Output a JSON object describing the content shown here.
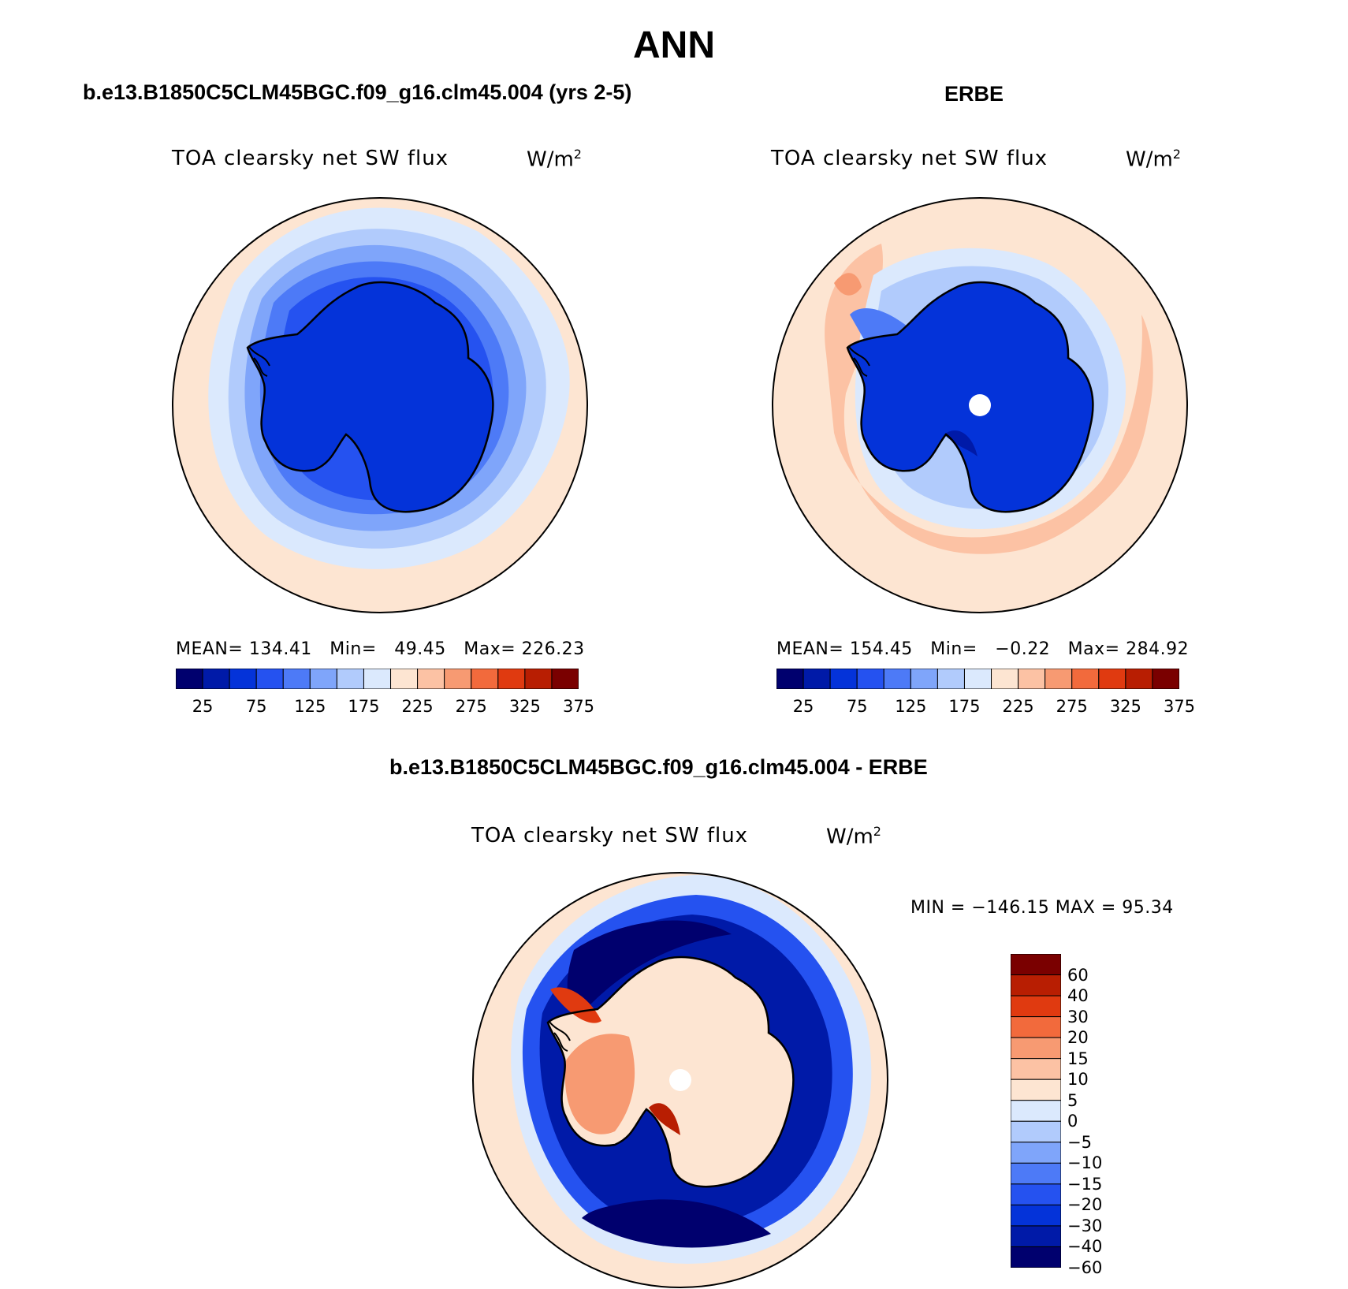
{
  "figure": {
    "title": "ANN"
  },
  "panels": [
    {
      "title": "b.e13.B1850C5CLM45BGC.f09_g16.clm45.004 (yrs 2-5)",
      "variable": "TOA clearsky net SW flux",
      "units_base": "W/m",
      "units_exp": "2",
      "stats": {
        "mean_label": "MEAN=",
        "mean": "134.41",
        "min_label": "Min=",
        "min": "49.45",
        "max_label": "Max=",
        "max": "226.23"
      }
    },
    {
      "title": "ERBE",
      "variable": "TOA clearsky net SW flux",
      "units_base": "W/m",
      "units_exp": "2",
      "stats": {
        "mean_label": "MEAN=",
        "mean": "154.45",
        "min_label": "Min=",
        "min": "−0.22",
        "max_label": "Max=",
        "max": "284.92"
      }
    },
    {
      "title": "b.e13.B1850C5CLM45BGC.f09_g16.clm45.004 - ERBE",
      "variable": "TOA clearsky net SW flux",
      "units_base": "W/m",
      "units_exp": "2",
      "minmax": "MIN = −146.15 MAX =  95.34"
    }
  ],
  "colorbar_abs": {
    "colors": [
      "#00006e",
      "#001aa8",
      "#0433d9",
      "#2552f0",
      "#4d7af7",
      "#7fa5fa",
      "#b1cbfc",
      "#dbe9fd",
      "#fde5d2",
      "#fcc2a4",
      "#f79a72",
      "#f26a3c",
      "#e03a10",
      "#b81e02",
      "#7a0000"
    ],
    "labels": [
      "25",
      "75",
      "125",
      "175",
      "225",
      "275",
      "325",
      "375"
    ]
  },
  "colorbar_diff": {
    "colors_top_to_bottom": [
      "#7a0000",
      "#b81e02",
      "#e03a10",
      "#f26a3c",
      "#f79a72",
      "#fcc2a4",
      "#fde5d2",
      "#dbe9fd",
      "#b1cbfc",
      "#7fa5fa",
      "#4d7af7",
      "#2552f0",
      "#0433d9",
      "#001aa8",
      "#00006e"
    ],
    "labels": [
      "60",
      "40",
      "30",
      "20",
      "15",
      "10",
      "5",
      "0",
      "−5",
      "−10",
      "−15",
      "−20",
      "−30",
      "−40",
      "−60"
    ]
  },
  "chart_data": [
    {
      "type": "heatmap",
      "title": "b.e13.B1850C5CLM45BGC.f09_g16.clm45.004 (yrs 2-5)",
      "variable": "TOA clearsky net SW flux",
      "units": "W/m2",
      "projection": "south polar stereographic",
      "contour_levels": [
        25,
        50,
        75,
        100,
        125,
        150,
        175,
        200,
        225,
        250,
        275,
        300,
        325,
        350,
        375
      ],
      "mean": 134.41,
      "min": 49.45,
      "max": 226.23
    },
    {
      "type": "heatmap",
      "title": "ERBE",
      "variable": "TOA clearsky net SW flux",
      "units": "W/m2",
      "projection": "south polar stereographic",
      "contour_levels": [
        25,
        50,
        75,
        100,
        125,
        150,
        175,
        200,
        225,
        250,
        275,
        300,
        325,
        350,
        375
      ],
      "mean": 154.45,
      "min": -0.22,
      "max": 284.92
    },
    {
      "type": "heatmap",
      "title": "b.e13.B1850C5CLM45BGC.f09_g16.clm45.004 - ERBE",
      "variable": "TOA clearsky net SW flux",
      "units": "W/m2",
      "projection": "south polar stereographic",
      "contour_levels": [
        -60,
        -40,
        -30,
        -20,
        -15,
        -10,
        -5,
        0,
        5,
        10,
        15,
        20,
        30,
        40,
        60
      ],
      "min": -146.15,
      "max": 95.34
    }
  ]
}
